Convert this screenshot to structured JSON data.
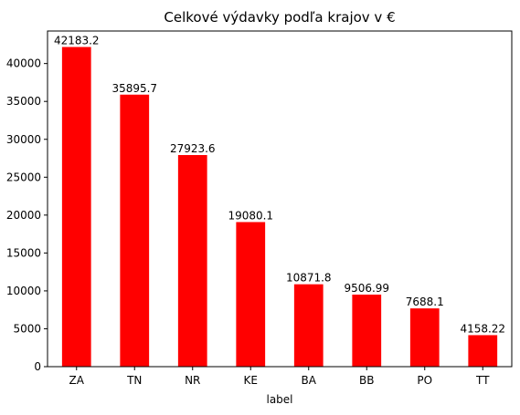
{
  "chart_data": {
    "type": "bar",
    "title": "Celkové výdavky podľa krajov v €",
    "xlabel": "label",
    "ylabel": "",
    "categories": [
      "ZA",
      "TN",
      "NR",
      "KE",
      "BA",
      "BB",
      "PO",
      "TT"
    ],
    "values": [
      42183.2,
      35895.7,
      27923.6,
      19080.1,
      10871.8,
      9506.99,
      7688.1,
      4158.22
    ],
    "data_labels": [
      "42183.2",
      "35895.7",
      "27923.6",
      "19080.1",
      "10871.8",
      "9506.99",
      "7688.1",
      "4158.22"
    ],
    "ylim": [
      0,
      44292.36
    ],
    "yticks": [
      0,
      5000,
      10000,
      15000,
      20000,
      25000,
      30000,
      35000,
      40000
    ],
    "bar_color": "#ff0000",
    "grid": false,
    "legend": "none"
  }
}
